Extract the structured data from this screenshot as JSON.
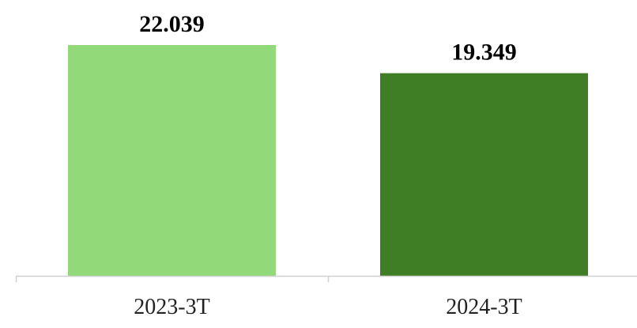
{
  "chart_data": {
    "type": "bar",
    "categories": [
      "2023-3T",
      "2024-3T"
    ],
    "values": [
      22039,
      19349
    ],
    "data_labels": [
      "22.039",
      "19.349"
    ],
    "title": "",
    "xlabel": "",
    "ylabel": "",
    "ylim": [
      0,
      22039
    ],
    "grid": false,
    "legend": "none",
    "colors": [
      "#92d979",
      "#3f7e24"
    ],
    "axis_color": "#d0d0d0"
  }
}
